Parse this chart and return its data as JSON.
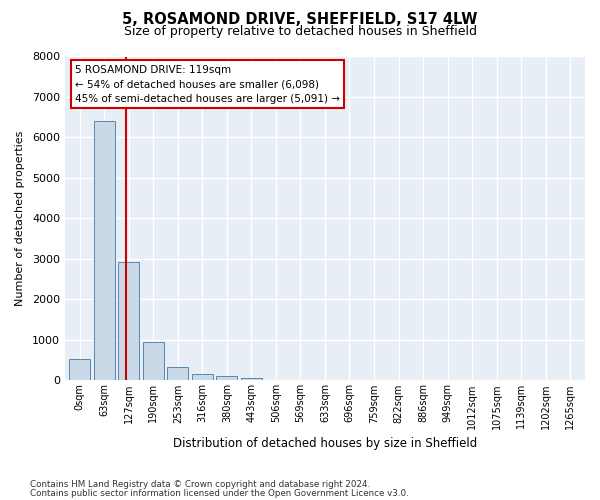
{
  "title1": "5, ROSAMOND DRIVE, SHEFFIELD, S17 4LW",
  "title2": "Size of property relative to detached houses in Sheffield",
  "xlabel": "Distribution of detached houses by size in Sheffield",
  "ylabel": "Number of detached properties",
  "bar_values": [
    540,
    6400,
    2920,
    960,
    330,
    150,
    100,
    65,
    0,
    0,
    0,
    0,
    0,
    0,
    0,
    0,
    0,
    0,
    0,
    0,
    0
  ],
  "bar_labels": [
    "0sqm",
    "63sqm",
    "127sqm",
    "190sqm",
    "253sqm",
    "316sqm",
    "380sqm",
    "443sqm",
    "506sqm",
    "569sqm",
    "633sqm",
    "696sqm",
    "759sqm",
    "822sqm",
    "886sqm",
    "949sqm",
    "1012sqm",
    "1075sqm",
    "1139sqm",
    "1202sqm",
    "1265sqm"
  ],
  "bar_color": "#c9d9e8",
  "bar_edge_color": "#5589b0",
  "background_color": "#e8eef5",
  "grid_color": "#ffffff",
  "annotation_text": "5 ROSAMOND DRIVE: 119sqm\n← 54% of detached houses are smaller (6,098)\n45% of semi-detached houses are larger (5,091) →",
  "annotation_box_color": "#cc0000",
  "ylim": [
    0,
    8000
  ],
  "yticks": [
    0,
    1000,
    2000,
    3000,
    4000,
    5000,
    6000,
    7000,
    8000
  ],
  "footer1": "Contains HM Land Registry data © Crown copyright and database right 2024.",
  "footer2": "Contains public sector information licensed under the Open Government Licence v3.0."
}
